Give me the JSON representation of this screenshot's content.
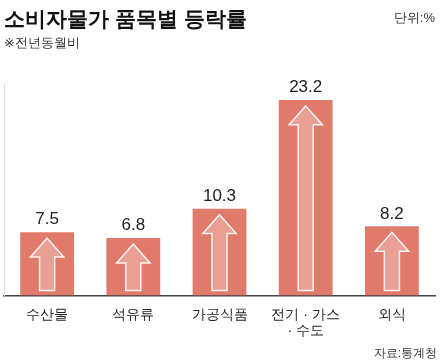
{
  "chart_data": {
    "type": "bar",
    "title": "소비자물가 품목별 등락률",
    "subtitle": "※전년동월비",
    "annotations": [
      "단위:%",
      "자료:통계청"
    ],
    "categories": [
      "수산물",
      "석유류",
      "가공식품",
      "전기 · 가스 · 수도",
      "외식"
    ],
    "values": [
      7.5,
      6.8,
      10.3,
      23.2,
      8.2
    ],
    "color": "#e07b6b",
    "ylim": [
      0,
      25
    ],
    "grid": false,
    "data_labels": true,
    "tick_labels": "x"
  }
}
